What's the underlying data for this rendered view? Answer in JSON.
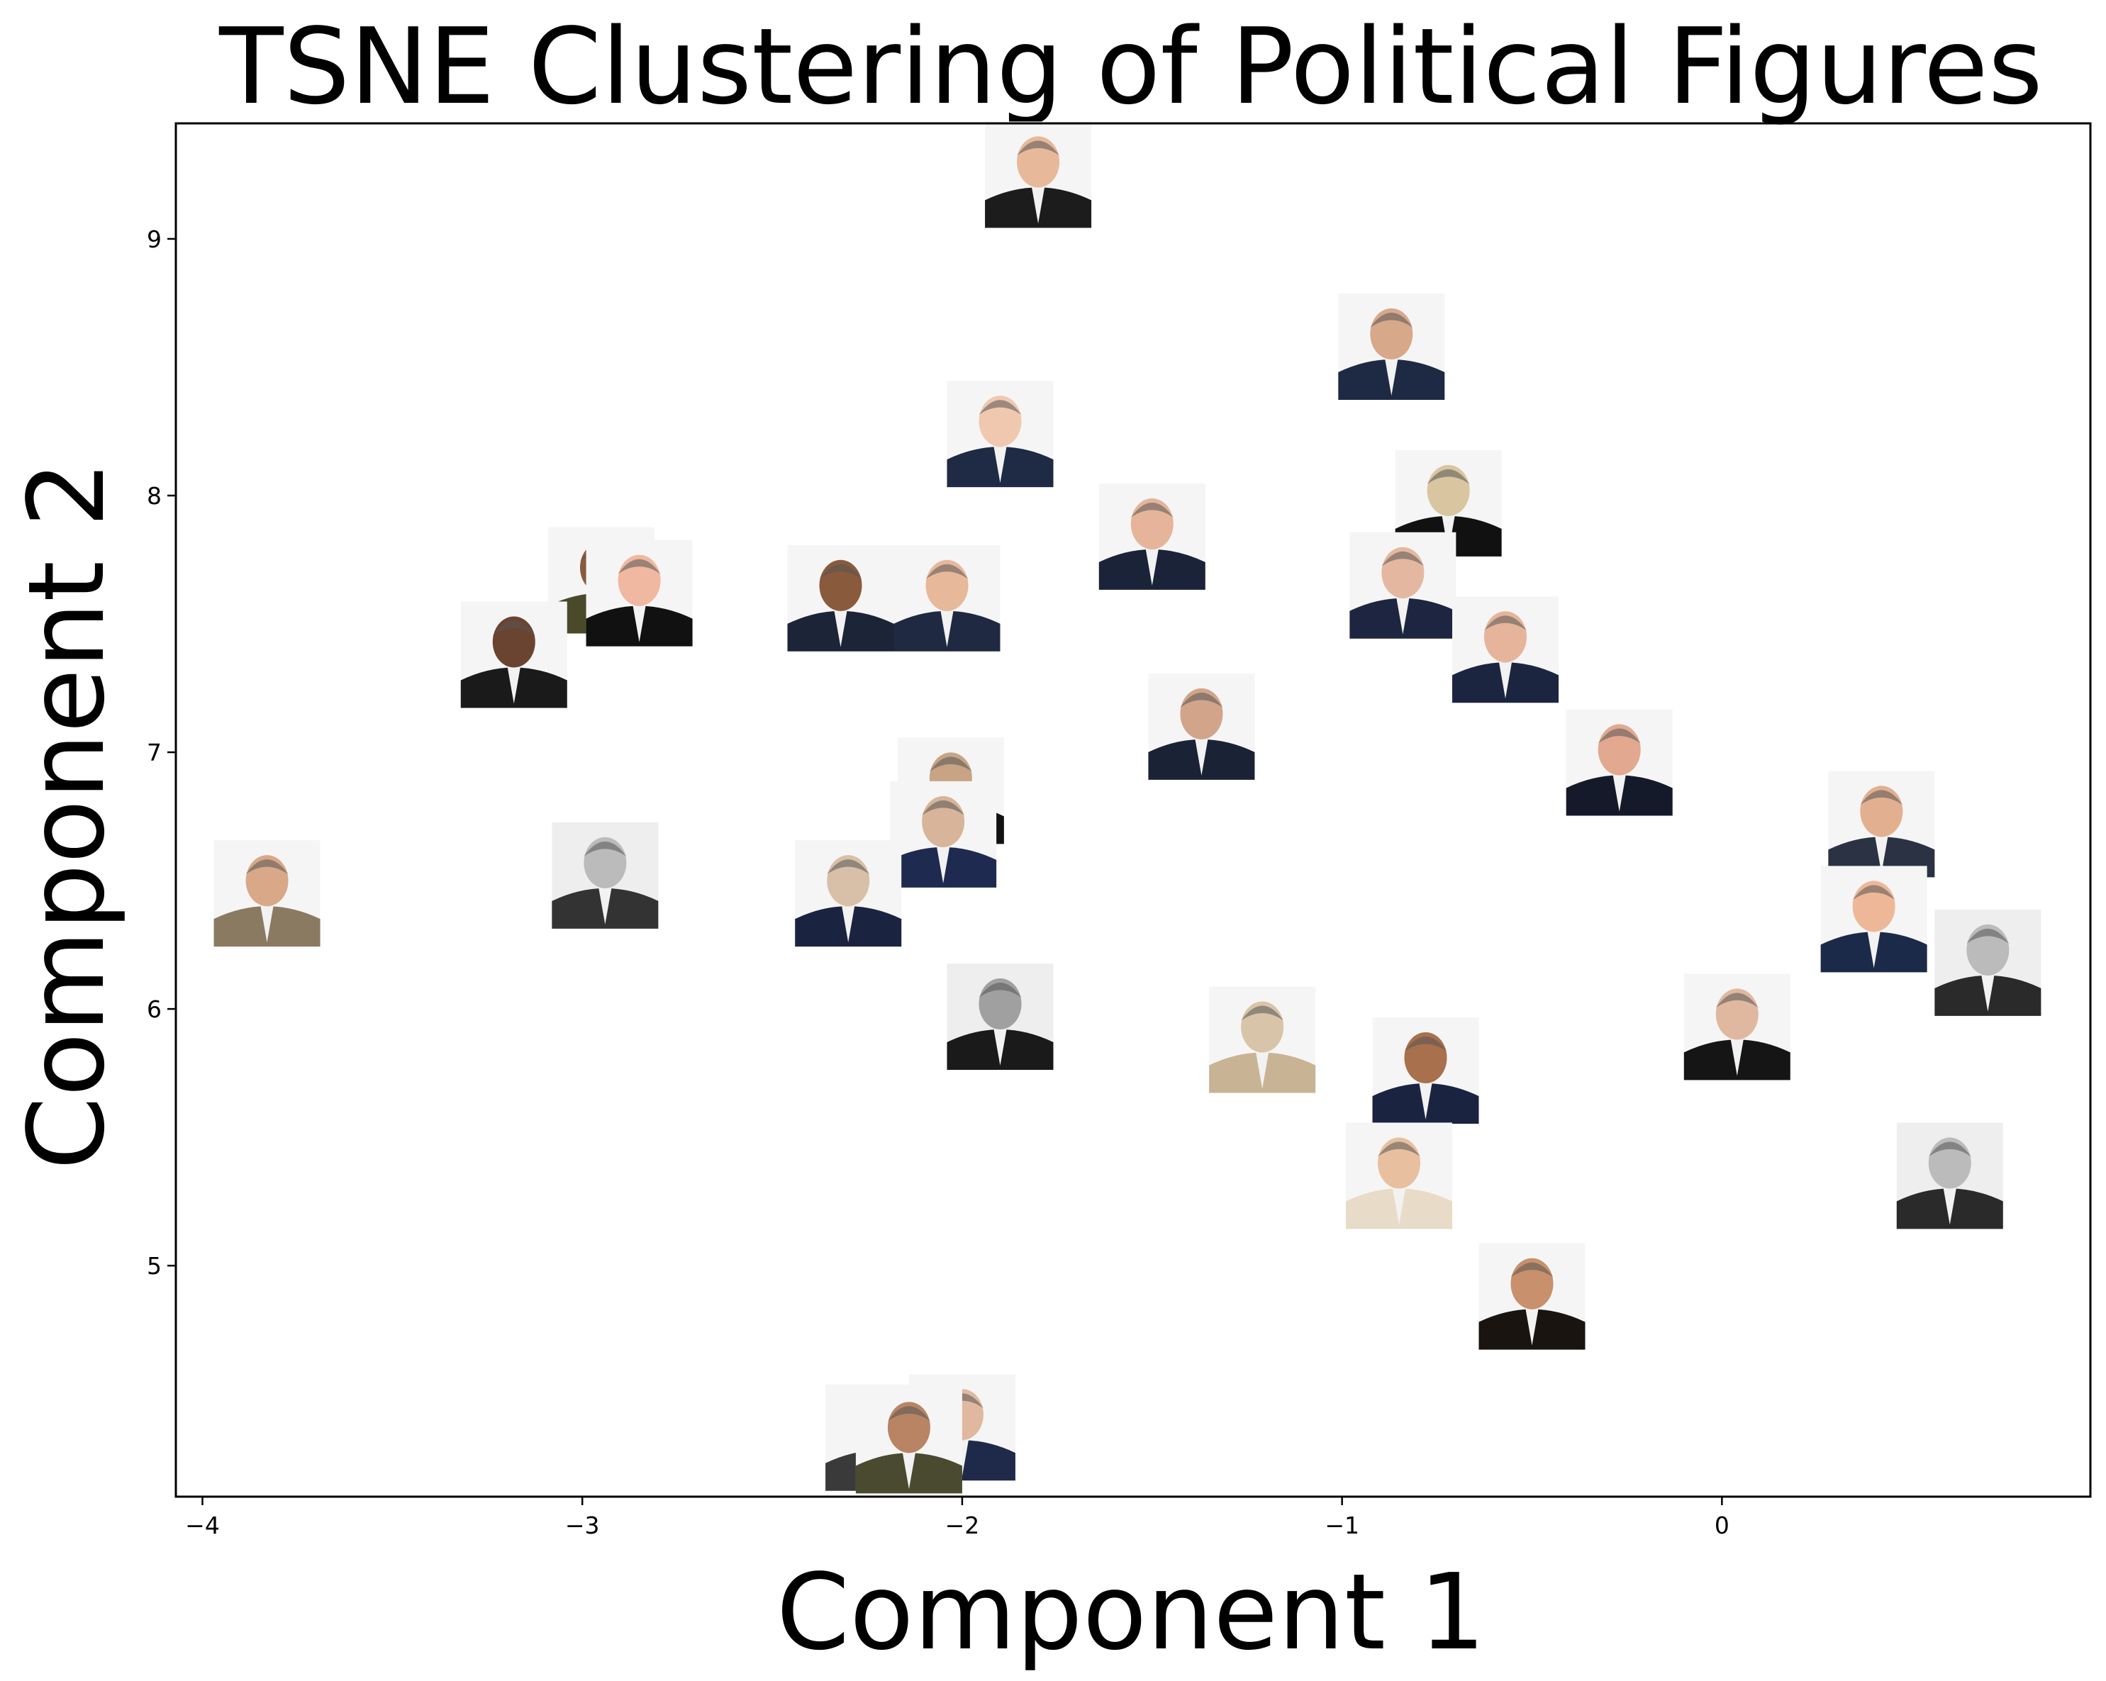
{
  "chart_data": {
    "type": "scatter",
    "title": "TSNE Clustering of Political Figures",
    "xlabel": "Component 1",
    "ylabel": "Component 2",
    "xlim": [
      -4.07,
      0.97
    ],
    "ylim": [
      4.1,
      9.45
    ],
    "xticks": [
      -4,
      -3,
      -2,
      -1,
      0
    ],
    "yticks": [
      5,
      6,
      7,
      8,
      9
    ],
    "xtick_labels": [
      "−4",
      "−3",
      "−2",
      "−1",
      "0"
    ],
    "ytick_labels": [
      "5",
      "6",
      "7",
      "8",
      "9"
    ],
    "grid": false,
    "legend": "none",
    "marker": "portrait-image",
    "points": [
      {
        "x": -1.8,
        "y": 9.25,
        "tone": "#e8b89a",
        "suit": "#1c1c1c",
        "bg": "#f5f5f5"
      },
      {
        "x": -0.87,
        "y": 8.58,
        "tone": "#d8a88a",
        "suit": "#1e2a44",
        "bg": "#f5f5f5"
      },
      {
        "x": -1.9,
        "y": 8.24,
        "tone": "#f0c8b0",
        "suit": "#1f2a44",
        "bg": "#f5f5f5"
      },
      {
        "x": -0.72,
        "y": 7.97,
        "tone": "#d9c6a0",
        "suit": "#111111",
        "bg": "#f5f5f5"
      },
      {
        "x": -1.5,
        "y": 7.84,
        "tone": "#e6b49a",
        "suit": "#1b2338",
        "bg": "#f5f5f5"
      },
      {
        "x": -0.84,
        "y": 7.65,
        "tone": "#e4b8a0",
        "suit": "#1d2540",
        "bg": "#f5f5f5"
      },
      {
        "x": -2.95,
        "y": 7.67,
        "tone": "#8a5a3c",
        "suit": "#4a4a2a",
        "bg": "#f5f5f5"
      },
      {
        "x": -2.85,
        "y": 7.62,
        "tone": "#f0b8a0",
        "suit": "#111111",
        "bg": "#f5f5f5"
      },
      {
        "x": -2.32,
        "y": 7.6,
        "tone": "#8a5a3c",
        "suit": "#1c2438",
        "bg": "#f5f5f5"
      },
      {
        "x": -2.04,
        "y": 7.6,
        "tone": "#e8b89a",
        "suit": "#1f2942",
        "bg": "#f5f5f5"
      },
      {
        "x": -3.18,
        "y": 7.38,
        "tone": "#6a4430",
        "suit": "#1a1a1a",
        "bg": "#f5f5f5"
      },
      {
        "x": -0.57,
        "y": 7.4,
        "tone": "#e6b49a",
        "suit": "#1c2540",
        "bg": "#f5f5f5"
      },
      {
        "x": -1.37,
        "y": 7.1,
        "tone": "#d2a48a",
        "suit": "#1a2236",
        "bg": "#f5f5f5"
      },
      {
        "x": -0.27,
        "y": 6.96,
        "tone": "#e2a890",
        "suit": "#151a2a",
        "bg": "#f5f5f5"
      },
      {
        "x": -2.03,
        "y": 6.85,
        "tone": "#c8a484",
        "suit": "#111111",
        "bg": "#f5f5f5"
      },
      {
        "x": -2.05,
        "y": 6.68,
        "tone": "#d8b49a",
        "suit": "#1f2a50",
        "bg": "#f5f5f5"
      },
      {
        "x": 0.42,
        "y": 6.72,
        "tone": "#e2b090",
        "suit": "#2a3244",
        "bg": "#f5f5f5"
      },
      {
        "x": -3.83,
        "y": 6.45,
        "tone": "#d8a888",
        "suit": "#8a7a62",
        "bg": "#f5f5f5"
      },
      {
        "x": -2.94,
        "y": 6.52,
        "tone": "#bbbbbb",
        "suit": "#333333",
        "bg": "#eeeeee"
      },
      {
        "x": -2.3,
        "y": 6.45,
        "tone": "#d8c0a8",
        "suit": "#1a2440",
        "bg": "#f5f5f5"
      },
      {
        "x": 0.4,
        "y": 6.35,
        "tone": "#eeb898",
        "suit": "#1c2a4a",
        "bg": "#f5f5f5"
      },
      {
        "x": 0.7,
        "y": 6.18,
        "tone": "#bbbbbb",
        "suit": "#2a2a2a",
        "bg": "#eeeeee"
      },
      {
        "x": 0.04,
        "y": 5.93,
        "tone": "#e0b8a0",
        "suit": "#151515",
        "bg": "#f5f5f5"
      },
      {
        "x": -1.9,
        "y": 5.97,
        "tone": "#a0a0a0",
        "suit": "#1a1a1a",
        "bg": "#eeeeee"
      },
      {
        "x": -1.21,
        "y": 5.88,
        "tone": "#d8c4a8",
        "suit": "#c8b494",
        "bg": "#f5f5f5"
      },
      {
        "x": -0.78,
        "y": 5.76,
        "tone": "#a8704c",
        "suit": "#1a2440",
        "bg": "#f5f5f5"
      },
      {
        "x": 0.6,
        "y": 5.35,
        "tone": "#bbbbbb",
        "suit": "#2a2a2a",
        "bg": "#eeeeee"
      },
      {
        "x": -0.85,
        "y": 5.35,
        "tone": "#e8c0a0",
        "suit": "#e8dcc8",
        "bg": "#f5f5f5"
      },
      {
        "x": -0.5,
        "y": 4.88,
        "tone": "#c8906c",
        "suit": "#1a1410",
        "bg": "#f5f5f5"
      },
      {
        "x": -2.0,
        "y": 4.37,
        "tone": "#e0b8a0",
        "suit": "#1f2a4a",
        "bg": "#f5f5f5"
      },
      {
        "x": -2.22,
        "y": 4.33,
        "tone": "#c89878",
        "suit": "#3a3a3a",
        "bg": "#f5f5f5"
      },
      {
        "x": -2.14,
        "y": 4.32,
        "tone": "#b88464",
        "suit": "#4a4a30",
        "bg": "#f5f5f5"
      }
    ]
  }
}
